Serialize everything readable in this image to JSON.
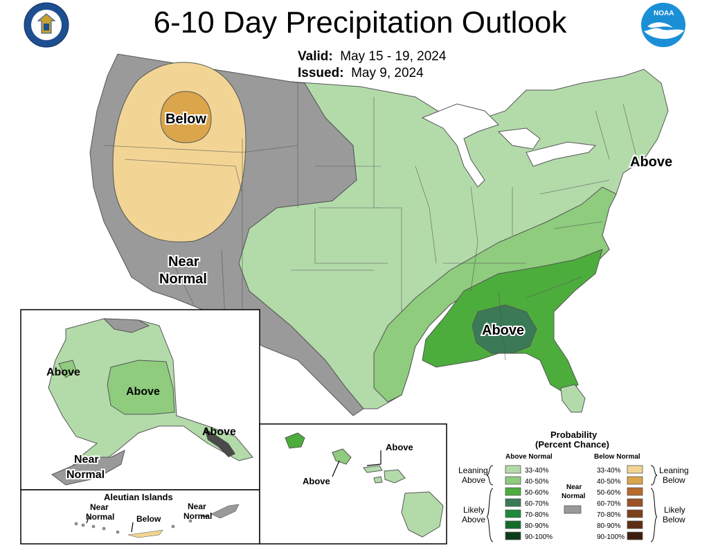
{
  "title": "6-10 Day Precipitation Outlook",
  "valid_label": "Valid:",
  "valid_value": "May 15 - 19, 2024",
  "issued_label": "Issued:",
  "issued_value": "May 9, 2024",
  "map_labels": {
    "conus_below": "Below",
    "conus_near_normal_1": "Near",
    "conus_near_normal_2": "Normal",
    "conus_above_ne": "Above",
    "conus_above_se": "Above",
    "ak_above_west": "Above",
    "ak_above_center": "Above",
    "ak_above_se": "Above",
    "ak_near_normal_1": "Near",
    "ak_near_normal_2": "Normal",
    "hi_above_1": "Above",
    "hi_above_2": "Above",
    "aleutian_title": "Aleutian Islands",
    "aleutian_near_1a": "Near",
    "aleutian_near_1b": "Normal",
    "aleutian_below": "Below",
    "aleutian_near_2a": "Near",
    "aleutian_near_2b": "Normal"
  },
  "legend": {
    "title_1": "Probability",
    "title_2": "(Percent Chance)",
    "above_header": "Above Normal",
    "below_header": "Below Normal",
    "near_label_1": "Near",
    "near_label_2": "Normal",
    "leaning_above_1": "Leaning",
    "leaning_above_2": "Above",
    "likely_above_1": "Likely",
    "likely_above_2": "Above",
    "leaning_below_1": "Leaning",
    "leaning_below_2": "Below",
    "likely_below_1": "Likely",
    "likely_below_2": "Below",
    "above_bins": [
      {
        "range": "33-40%",
        "color": "#b3dbaa"
      },
      {
        "range": "40-50%",
        "color": "#8fcc7e"
      },
      {
        "range": "50-60%",
        "color": "#4cad3c"
      },
      {
        "range": "60-70%",
        "color": "#3a7a56"
      },
      {
        "range": "70-80%",
        "color": "#1e8a3a"
      },
      {
        "range": "80-90%",
        "color": "#146d2a"
      },
      {
        "range": "90-100%",
        "color": "#0b3d18"
      }
    ],
    "below_bins": [
      {
        "range": "33-40%",
        "color": "#f2d594"
      },
      {
        "range": "40-50%",
        "color": "#dba54c"
      },
      {
        "range": "50-60%",
        "color": "#b86a2c"
      },
      {
        "range": "60-70%",
        "color": "#9c5224"
      },
      {
        "range": "70-80%",
        "color": "#7d3f1c"
      },
      {
        "range": "80-90%",
        "color": "#5e2f14"
      },
      {
        "range": "90-100%",
        "color": "#3b1e0c"
      }
    ],
    "near_color": "#999999"
  },
  "colors": {
    "near_normal": "#9a9a9a",
    "above_33_40": "#b3dbaa",
    "above_40_50": "#8fcc7e",
    "above_50_60": "#4cad3c",
    "above_60_70": "#3a7a56",
    "below_33_40": "#f2d594",
    "below_40_50": "#dba54c",
    "noaa_blue": "#1a8fd6",
    "doc_blue": "#1d4f91"
  },
  "icons": [
    "department-of-commerce-seal-icon",
    "noaa-logo-icon"
  ]
}
